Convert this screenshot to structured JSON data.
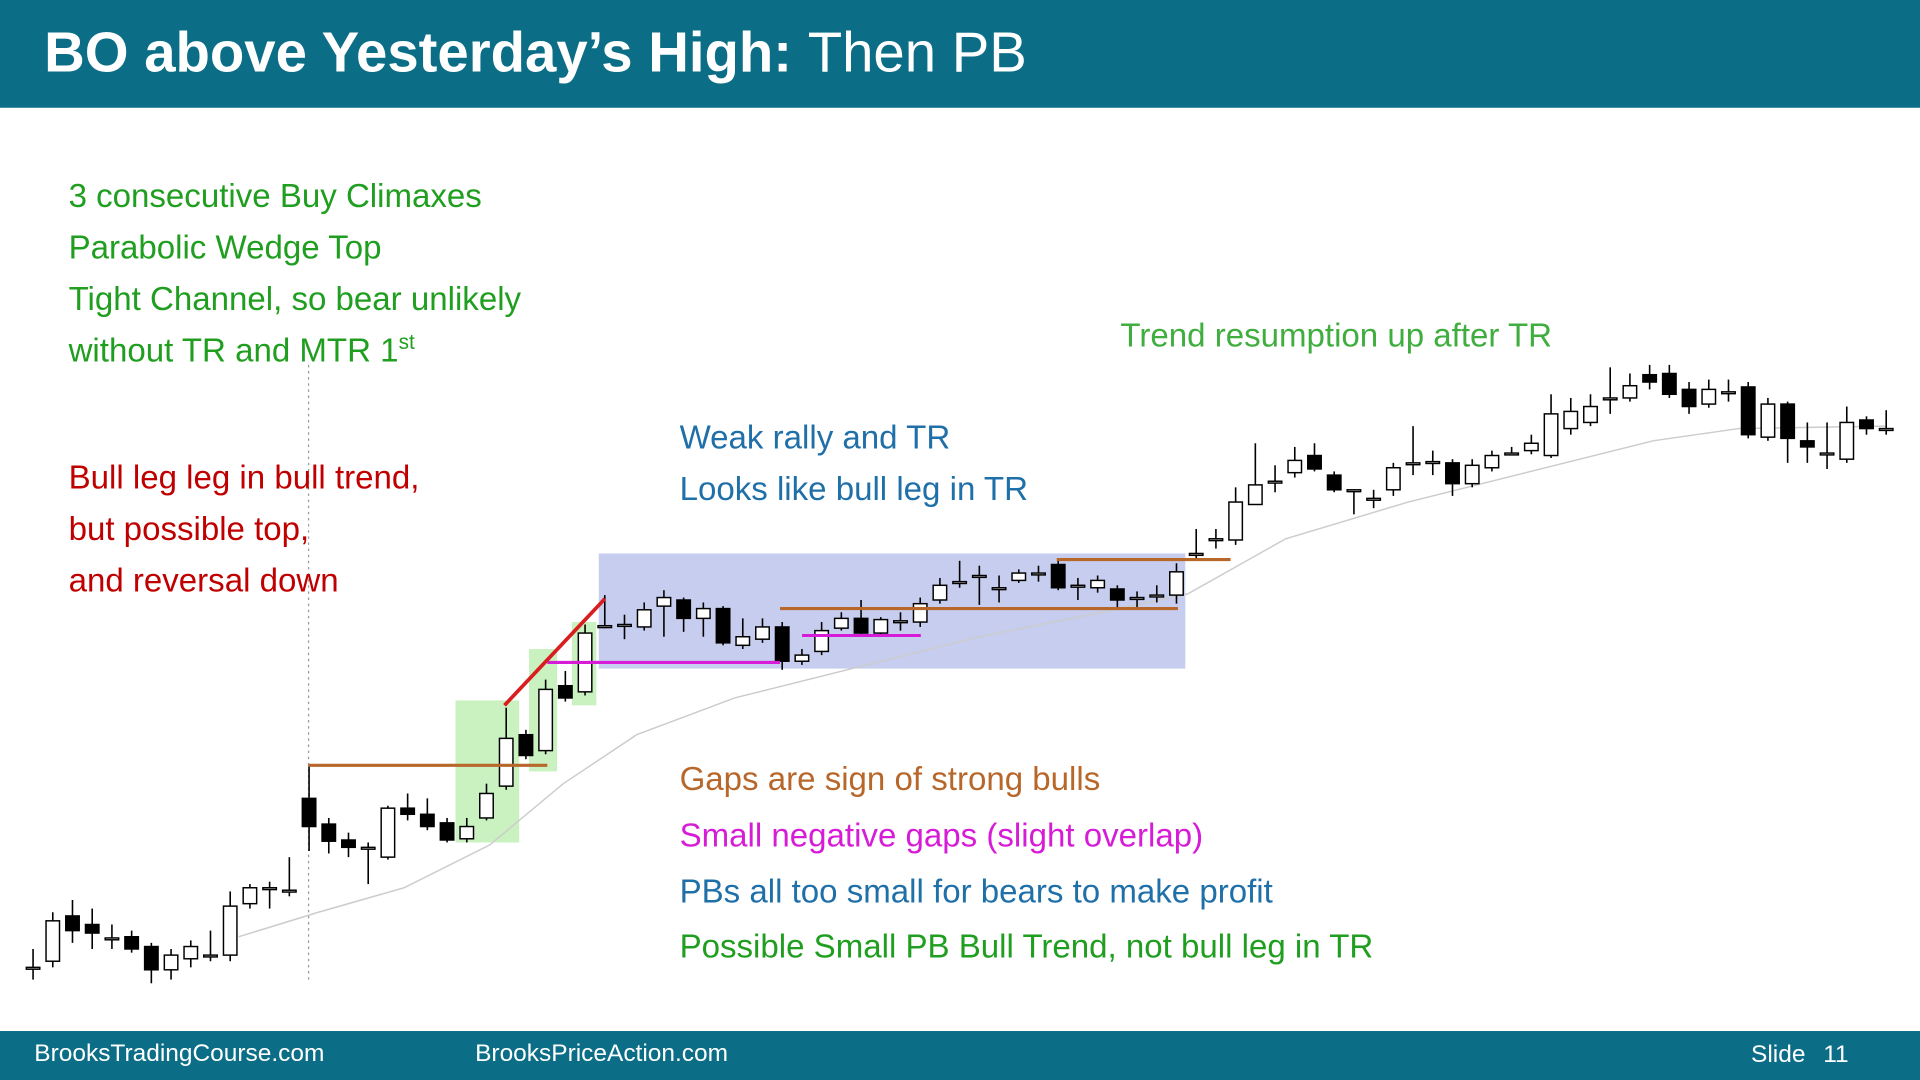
{
  "header": {
    "title_bold": "BO above Yesterday’s High:",
    "title_rest": "Then PB"
  },
  "annotations": {
    "climax": [
      "3 consecutive Buy Climaxes",
      "Parabolic Wedge Top",
      "Tight Channel, so bear unlikely",
      "without TR and MTR 1"
    ],
    "climax_sup": "st",
    "bull_leg": [
      "Bull leg leg in bull trend,",
      "but possible top,",
      "and reversal down"
    ],
    "weak": [
      "Weak rally and TR",
      "Looks like bull leg in TR"
    ],
    "trend": "Trend resumption up after TR",
    "gaps": "Gaps are sign of strong bulls",
    "small_gaps": "Small negative gaps (slight overlap)",
    "pbs": "PBs all too small for bears to make profit",
    "possible": "Possible Small PB Bull Trend, not bull leg in TR"
  },
  "chart_data": {
    "type": "candlestick",
    "ylim": [
      80,
      620
    ],
    "series": [
      {
        "open": [
          110,
          115,
          152,
          145,
          134,
          135,
          127,
          108,
          117,
          120,
          120,
          162,
          175,
          173,
          248,
          227,
          214,
          208,
          200,
          240,
          235,
          228,
          215,
          232,
          258,
          300,
          287,
          340,
          335,
          389,
          390,
          388,
          405,
          410,
          395,
          403,
          373,
          378,
          388,
          360,
          368,
          387,
          395,
          383,
          393,
          392,
          410,
          425,
          430,
          420,
          426,
          432,
          439,
          422,
          420,
          419,
          412,
          414,
          414,
          448,
          460,
          459,
          488,
          507,
          514,
          528,
          512,
          500,
          493,
          500,
          522,
          523,
          522,
          505,
          518,
          530,
          532,
          528,
          550,
          555,
          575,
          575,
          594,
          595,
          582,
          570,
          580,
          584,
          543,
          570,
          540,
          530,
          525,
          557,
          550
        ],
        "high": [
          125,
          155,
          165,
          158,
          145,
          140,
          130,
          125,
          132,
          140,
          172,
          178,
          180,
          200,
          275,
          232,
          220,
          212,
          242,
          252,
          248,
          232,
          232,
          260,
          322,
          304,
          345,
          352,
          390,
          414,
          398,
          408,
          418,
          412,
          408,
          405,
          395,
          395,
          392,
          370,
          392,
          400,
          410,
          396,
          400,
          412,
          428,
          442,
          438,
          430,
          435,
          438,
          442,
          428,
          430,
          422,
          417,
          422,
          440,
          468,
          468,
          502,
          538,
          520,
          535,
          538,
          515,
          500,
          500,
          522,
          552,
          532,
          525,
          525,
          532,
          535,
          545,
          578,
          575,
          578,
          600,
          595,
          602,
          602,
          588,
          590,
          590,
          588,
          575,
          572,
          555,
          555,
          568,
          560,
          565
        ],
        "low": [
          100,
          110,
          130,
          125,
          125,
          122,
          97,
          100,
          110,
          115,
          115,
          158,
          158,
          168,
          205,
          203,
          200,
          178,
          198,
          230,
          222,
          212,
          212,
          230,
          255,
          280,
          284,
          327,
          332,
          387,
          378,
          385,
          380,
          384,
          380,
          373,
          370,
          375,
          353,
          357,
          365,
          385,
          381,
          380,
          385,
          388,
          407,
          420,
          406,
          408,
          424,
          425,
          418,
          410,
          416,
          403,
          402,
          408,
          407,
          442,
          452,
          455,
          488,
          498,
          510,
          515,
          498,
          480,
          485,
          495,
          512,
          512,
          495,
          502,
          515,
          528,
          529,
          526,
          545,
          552,
          562,
          572,
          582,
          575,
          562,
          567,
          572,
          542,
          540,
          522,
          522,
          517,
          522,
          545,
          545
        ],
        "close": [
          110,
          148,
          140,
          138,
          134,
          125,
          108,
          120,
          127,
          120,
          160,
          175,
          175,
          173,
          225,
          213,
          208,
          208,
          240,
          235,
          225,
          214,
          225,
          252,
          297,
          283,
          337,
          330,
          383,
          389,
          390,
          402,
          412,
          395,
          403,
          375,
          380,
          388,
          360,
          365,
          385,
          395,
          383,
          394,
          393,
          407,
          422,
          425,
          430,
          420,
          432,
          432,
          420,
          422,
          426,
          410,
          412,
          414,
          433,
          448,
          460,
          490,
          504,
          507,
          524,
          517,
          500,
          500,
          493,
          518,
          522,
          523,
          505,
          520,
          528,
          530,
          538,
          562,
          564,
          568,
          575,
          585,
          588,
          578,
          568,
          582,
          580,
          545,
          570,
          542,
          535,
          530,
          555,
          550,
          550
        ]
      }
    ]
  },
  "footer": {
    "left": "BrooksTradingCourse.com",
    "middle": "BrooksPriceAction.com",
    "slide": "Slide",
    "number": 11
  }
}
